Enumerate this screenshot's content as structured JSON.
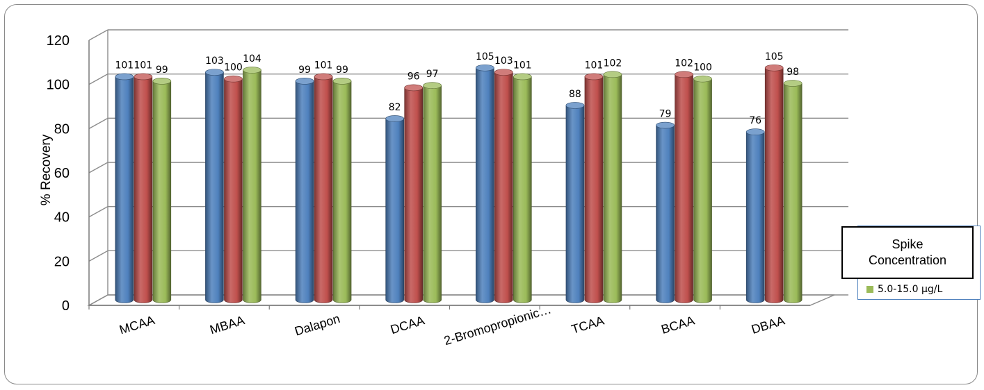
{
  "chart_data": {
    "type": "bar",
    "ylabel": "% Recovery",
    "xlabel": "",
    "ylim": [
      0,
      120
    ],
    "yticks": [
      0,
      20,
      40,
      60,
      80,
      100,
      120
    ],
    "grid": true,
    "categories": [
      "MCAA",
      "MBAA",
      "Dalapon",
      "DCAA",
      "2-Bromopropionic…",
      "TCAA",
      "BCAA",
      "DBAA"
    ],
    "series": [
      {
        "color": "#4f81bd",
        "values": [
          101,
          103,
          99,
          82,
          105,
          88,
          79,
          76
        ]
      },
      {
        "color": "#c0504d",
        "values": [
          101,
          100,
          101,
          96,
          103,
          101,
          102,
          105
        ]
      },
      {
        "name": "5.0-15.0 µg/L",
        "color": "#9bbb59",
        "values": [
          99,
          104,
          99,
          97,
          101,
          102,
          100,
          98
        ]
      }
    ],
    "legend": {
      "title": "Spike Concentration",
      "position": "right",
      "entries": [
        "5.0-15.0 µg/L"
      ]
    },
    "data_labels": true
  }
}
